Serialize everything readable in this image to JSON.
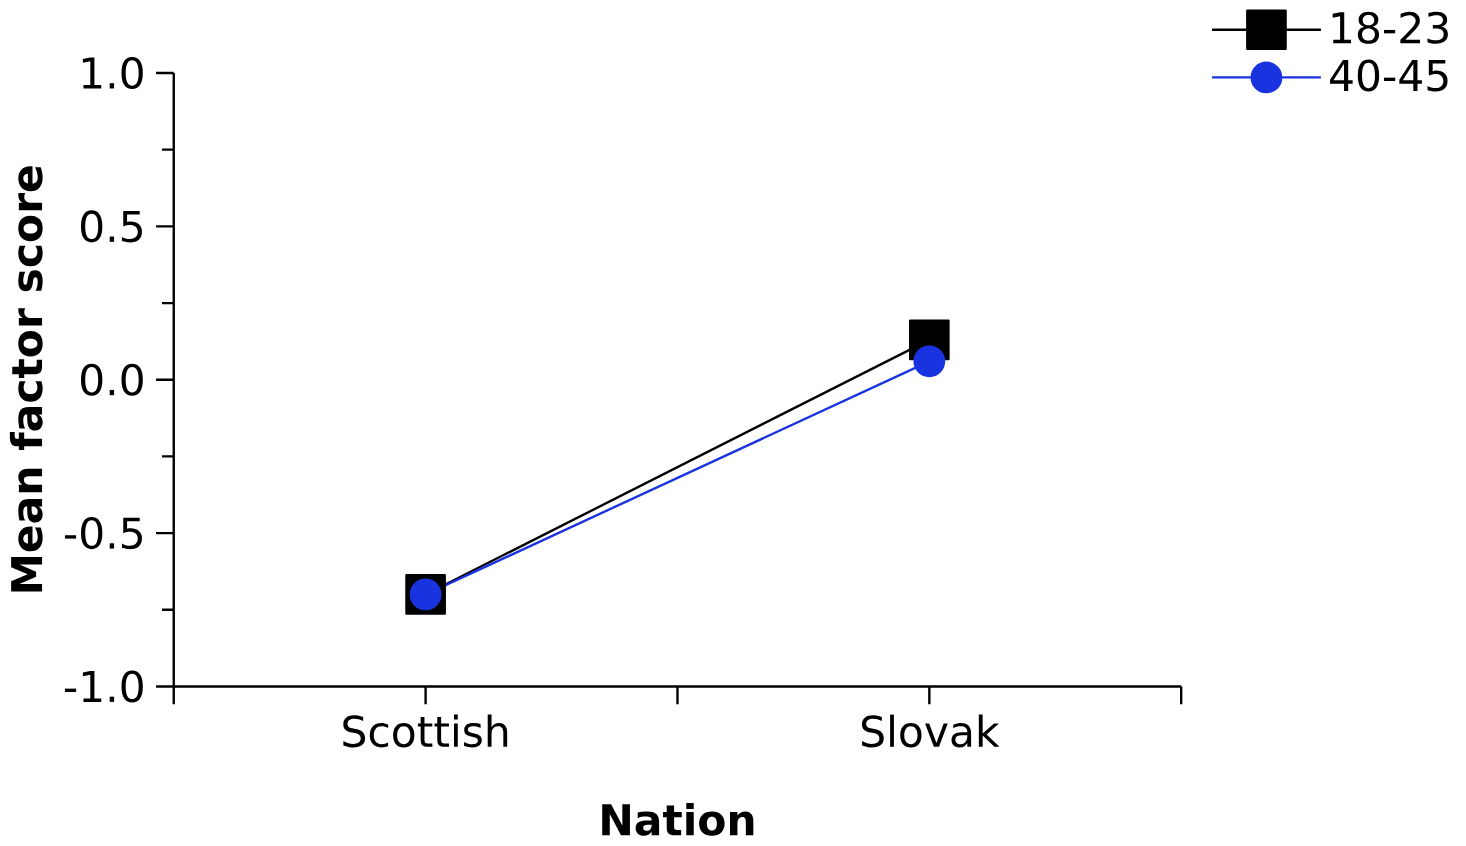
{
  "chart_data": {
    "type": "line",
    "xlabel": "Nation",
    "ylabel": "Mean factor score",
    "categories": [
      "Scottish",
      "Slovak"
    ],
    "series": [
      {
        "name": "18-23",
        "color": "#000000",
        "marker": "square",
        "values": [
          -0.7,
          0.13
        ]
      },
      {
        "name": "40-45",
        "color": "#1a33e0",
        "marker": "circle",
        "values": [
          -0.7,
          0.06
        ]
      }
    ],
    "ylim": [
      -1.0,
      1.0
    ],
    "yticks": [
      {
        "value": -1.0,
        "label": "-1.0"
      },
      {
        "value": -0.5,
        "label": "-0.5"
      },
      {
        "value": 0.0,
        "label": "0.0"
      },
      {
        "value": 0.5,
        "label": "0.5"
      },
      {
        "value": 1.0,
        "label": "1.0"
      }
    ],
    "legend": "top right",
    "grid": false,
    "line_style": "solid"
  }
}
